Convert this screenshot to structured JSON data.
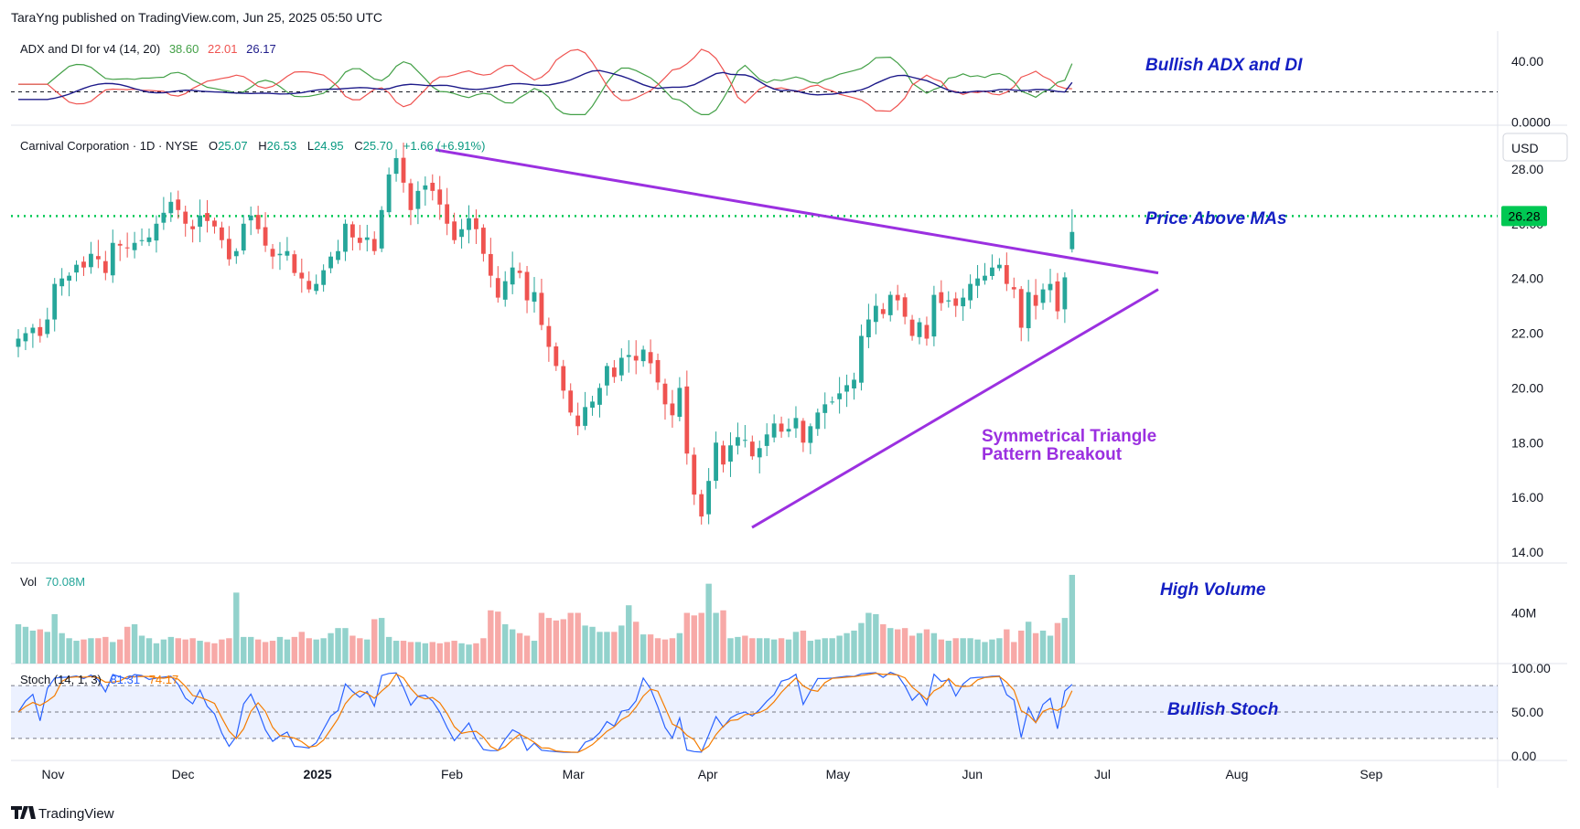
{
  "header": {
    "published": "TaraYng published on TradingView.com, Jun 25, 2025 05:50 UTC"
  },
  "footer": {
    "brand": "TradingView"
  },
  "colors": {
    "up": "#26a69a",
    "down": "#ef5350",
    "adx": "#1e1b8a",
    "di_plus": "#43a047",
    "di_minus": "#ef5350",
    "trend": "#9b30e0",
    "level": "#00c853",
    "stoch_k": "#2962ff",
    "stoch_d": "#f57c00",
    "annotation": "#1520c4"
  },
  "chart_data": {
    "type": "candlestick",
    "symbol_legend": {
      "name": "Carnival Corporation · 1D · NYSE",
      "o_label": "O",
      "o": "25.07",
      "h_label": "H",
      "h": "26.53",
      "l_label": "L",
      "l": "24.95",
      "c_label": "C",
      "c": "25.70",
      "change": "+1.66 (+6.91%)"
    },
    "currency": "USD",
    "price_axis": {
      "ylim": [
        13.6,
        29.6
      ],
      "ticks": [
        "28.00",
        "26.00",
        "24.00",
        "22.00",
        "20.00",
        "18.00",
        "16.00",
        "14.00"
      ],
      "tick_values": [
        28,
        26,
        24,
        22,
        20,
        18,
        16,
        14
      ]
    },
    "last_price_label": "26.28",
    "level_line": 26.28,
    "x_axis": {
      "labels": [
        "Nov",
        "Dec",
        "2025",
        "Feb",
        "Mar",
        "Apr",
        "May",
        "Jun",
        "Jul",
        "Aug",
        "Sep"
      ],
      "dates": [
        "2024-11-01",
        "2024-12-01",
        "2025-01-01",
        "2025-02-01",
        "2025-03-01",
        "2025-04-01",
        "2025-05-01",
        "2025-06-01",
        "2025-07-01",
        "2025-08-01",
        "2025-09-01"
      ],
      "bold": [
        "2025"
      ]
    },
    "closes": [
      21.8,
      22.0,
      22.2,
      21.9,
      22.5,
      23.8,
      24.0,
      24.1,
      24.5,
      24.4,
      24.9,
      24.7,
      24.2,
      25.3,
      25.2,
      25.1,
      25.3,
      25.4,
      25.5,
      26.0,
      26.4,
      26.8,
      26.5,
      26.0,
      25.8,
      26.3,
      26.1,
      25.9,
      25.4,
      24.7,
      25.0,
      26.0,
      26.3,
      25.8,
      25.2,
      24.8,
      24.9,
      25.0,
      24.2,
      24.0,
      23.6,
      23.8,
      24.3,
      24.8,
      25.0,
      26.0,
      25.5,
      25.3,
      25.5,
      25.0,
      26.5,
      27.8,
      28.4,
      27.5,
      26.5,
      27.2,
      27.4,
      27.2,
      26.7,
      26.0,
      25.4,
      25.8,
      26.2,
      25.8,
      24.9,
      24.1,
      23.3,
      23.9,
      24.4,
      24.2,
      23.2,
      23.5,
      22.3,
      21.5,
      20.8,
      19.9,
      19.1,
      18.6,
      19.3,
      19.5,
      20.0,
      20.8,
      20.4,
      21.1,
      21.2,
      21.0,
      21.4,
      20.9,
      20.2,
      19.4,
      19.0,
      20.0,
      17.6,
      16.1,
      15.3,
      16.6,
      18.0,
      17.2,
      17.9,
      18.2,
      18.1,
      17.5,
      17.8,
      18.3,
      18.7,
      18.4,
      18.5,
      18.9,
      18.0,
      18.6,
      19.1,
      19.4,
      19.5,
      19.8,
      20.1,
      20.3,
      21.9,
      22.5,
      23.0,
      22.7,
      23.4,
      23.2,
      22.6,
      21.9,
      22.4,
      21.8,
      23.4,
      23.1,
      23.2,
      23.0,
      23.3,
      23.8,
      24.0,
      24.1,
      24.4,
      24.5,
      23.8,
      23.6,
      22.2,
      23.5,
      23.0,
      23.6,
      23.8,
      22.8,
      24.04,
      25.7
    ],
    "volume": {
      "label": "Vol",
      "value": "70.08M",
      "ticks": [
        "40M"
      ],
      "tick_values": [
        40
      ],
      "ymax": 75,
      "values": [
        31,
        29,
        26,
        27,
        25,
        39,
        24,
        20,
        18,
        19,
        20,
        20,
        21,
        17,
        19,
        29,
        31,
        22,
        20,
        16,
        19,
        21,
        20,
        19,
        20,
        18,
        17,
        16,
        19,
        20,
        56,
        21,
        21,
        19,
        17,
        18,
        21,
        19,
        21,
        25,
        20,
        19,
        20,
        24,
        28,
        28,
        22,
        20,
        19,
        35,
        36,
        21,
        18,
        18,
        17,
        17,
        16,
        17,
        16,
        17,
        18,
        16,
        15,
        16,
        20,
        42,
        41,
        31,
        27,
        24,
        22,
        18,
        40,
        36,
        34,
        35,
        40,
        40,
        30,
        29,
        25,
        25,
        25,
        30,
        46,
        33,
        23,
        23,
        20,
        19,
        20,
        24,
        40,
        38,
        40,
        63,
        40,
        42,
        20,
        21,
        22,
        20,
        20,
        20,
        19,
        20,
        19,
        25,
        26,
        18,
        19,
        20,
        20,
        22,
        24,
        26,
        32,
        40,
        39,
        31,
        28,
        27,
        28,
        22,
        24,
        27,
        24,
        19,
        18,
        20,
        20,
        20,
        19,
        17,
        19,
        20,
        27,
        17,
        26,
        33,
        24,
        26,
        22,
        32,
        36,
        70
      ]
    },
    "adx_di": {
      "label": "ADX and DI for v4 (14, 20)",
      "di_plus": "38.60",
      "di_minus": "22.01",
      "adx": "26.17",
      "ticks": [
        "40.00",
        "0.0000"
      ],
      "tick_values": [
        40,
        0
      ],
      "ylim": [
        -2,
        60
      ],
      "threshold": 20
    },
    "stoch": {
      "label": "Stoch (14, 1, 3)",
      "k": "81.31",
      "d": "74.17",
      "ticks": [
        "100.00",
        "50.00",
        "0.00"
      ],
      "tick_values": [
        100,
        50,
        0
      ],
      "ylim": [
        -5,
        105
      ],
      "upper": 80,
      "lower": 20
    }
  },
  "annotations": {
    "adx": "Bullish ADX and DI",
    "price": "Price Above MAs",
    "triangle_line1": "Symmetrical Triangle",
    "triangle_line2": "Pattern Breakout",
    "volume": "High Volume",
    "stoch": "Bullish Stoch"
  }
}
